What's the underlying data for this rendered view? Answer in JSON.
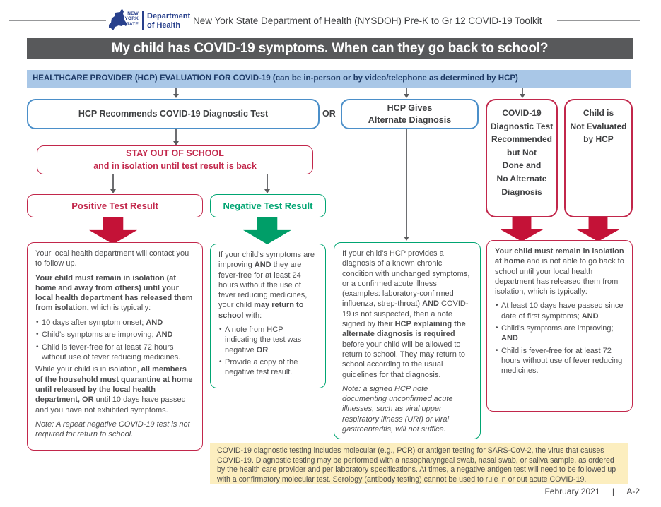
{
  "colors": {
    "red": "#c2274b",
    "red_arrow": "#c41237",
    "green": "#00a572",
    "green_arrow": "#009e68",
    "blue_border": "#4b8fc9",
    "banner_blue": "#a9c7e7",
    "banner_dark": "#58595b",
    "navy": "#1e3a65",
    "logo_blue": "#28408c",
    "note_yellow": "#fceebf"
  },
  "header": {
    "logo_state": "NEW\nYORK\nSTATE",
    "logo_dept": "Department\nof Health",
    "title": "New York State Department of Health (NYSDOH) Pre-K to Gr 12 COVID-19 Toolkit"
  },
  "question_banner": "My child has COVID-19 symptoms. When can they go back to school?",
  "hcp_banner": "HEALTHCARE PROVIDER (HCP) EVALUATION FOR COVID-19 (can be in-person or by video/telephone as determined by HCP)",
  "flow": {
    "test_box": "HCP Recommends COVID-19 Diagnostic Test",
    "or": "OR",
    "alt_box": "HCP Gives\nAlternate Diagnosis",
    "not_done_box": "COVID-19\nDiagnostic Test\nRecommended\nbut Not\nDone and\nNo Alternate\nDiagnosis",
    "not_evaluated_box": "Child is\nNot Evaluated\nby HCP",
    "stay_out_line1": "STAY OUT OF SCHOOL",
    "stay_out_line2": "and in isolation until test result is back",
    "positive": "Positive Test Result",
    "negative": "Negative Test Result"
  },
  "boxes": {
    "positive": {
      "paragraphs": [
        {
          "type": "p",
          "runs": [
            {
              "t": "Your local health department will contact you to follow up."
            }
          ]
        },
        {
          "type": "p",
          "runs": [
            {
              "t": "Your child must remain in isolation (at home and away from others) until your local health department has released them from isolation,",
              "b": true
            },
            {
              "t": " which is typically:"
            }
          ]
        },
        {
          "type": "li",
          "runs": [
            {
              "t": "10 days after symptom onset; "
            },
            {
              "t": "AND",
              "b": true
            }
          ]
        },
        {
          "type": "li",
          "runs": [
            {
              "t": "Child's symptoms are improving; "
            },
            {
              "t": "AND",
              "b": true
            }
          ]
        },
        {
          "type": "li",
          "runs": [
            {
              "t": "Child is fever-free for at least 72 hours without use of fever reducing medicines."
            }
          ]
        },
        {
          "type": "p",
          "runs": [
            {
              "t": "While your child is in isolation, "
            },
            {
              "t": "all members of the household must quarantine at home until released by the local health department, OR",
              "b": true
            },
            {
              "t": " until 10 days have passed and you have not exhibited symptoms."
            }
          ]
        },
        {
          "type": "p",
          "runs": [
            {
              "t": "Note: A repeat negative COVID-19 test is not required for return to school.",
              "i": true
            }
          ]
        }
      ]
    },
    "negative": {
      "paragraphs": [
        {
          "type": "p",
          "runs": [
            {
              "t": "If your child's symptoms are improving "
            },
            {
              "t": "AND",
              "b": true
            },
            {
              "t": " they are fever-free for at least 24 hours without the use of fever reducing medicines, your child "
            },
            {
              "t": "may return to school",
              "b": true
            },
            {
              "t": " with:"
            }
          ]
        },
        {
          "type": "li",
          "runs": [
            {
              "t": "A note from HCP indicating the test was negative "
            },
            {
              "t": "OR",
              "b": true
            }
          ]
        },
        {
          "type": "li",
          "runs": [
            {
              "t": "Provide a copy of the negative test result."
            }
          ]
        }
      ]
    },
    "alternate": {
      "paragraphs": [
        {
          "type": "p",
          "runs": [
            {
              "t": "If your child's HCP provides a diagnosis of a known chronic condition with unchanged symptoms, or a confirmed acute illness (examples: laboratory-confirmed influenza, strep-throat) "
            },
            {
              "t": "AND",
              "b": true
            },
            {
              "t": " COVID-19 is not suspected, then a note signed by their "
            },
            {
              "t": "HCP explaining the alternate diagnosis is required",
              "b": true
            },
            {
              "t": " before your child will be allowed to return to school. They may return to school according to the usual guidelines for that diagnosis."
            }
          ]
        },
        {
          "type": "p",
          "runs": [
            {
              "t": "Note: a signed HCP note documenting unconfirmed acute illnesses, such as viral upper respiratory illness (URI) or viral gastroenteritis, will not suffice.",
              "i": true
            }
          ]
        }
      ]
    },
    "isolation": {
      "paragraphs": [
        {
          "type": "p",
          "runs": [
            {
              "t": "Your child must remain in isolation at home",
              "b": true
            },
            {
              "t": " and is not able to go back to school until your local health department has released them from isolation, which is typically:"
            }
          ]
        },
        {
          "type": "li",
          "runs": [
            {
              "t": "At least 10 days have passed since date of first symptoms; "
            },
            {
              "t": "AND",
              "b": true
            }
          ]
        },
        {
          "type": "li",
          "runs": [
            {
              "t": "Child's symptoms are improving; "
            },
            {
              "t": "AND",
              "b": true
            }
          ]
        },
        {
          "type": "li",
          "runs": [
            {
              "t": "Child is fever-free for at least 72 hours without use of fever reducing medicines."
            }
          ]
        }
      ]
    }
  },
  "footnote": "COVID-19 diagnostic testing includes molecular (e.g., PCR) or antigen testing for SARS-CoV-2, the virus that causes COVID-19. Diagnostic testing may be performed with a nasopharyngeal swab, nasal swab, or saliva sample, as ordered by the health care provider and per laboratory specifications. At times, a negative antigen test will need to be followed up with a confirmatory molecular test.  Serology (antibody testing) cannot be used to rule in or out acute COVID-19.",
  "footer": {
    "date": "February 2021",
    "separator": "|",
    "page": "A-2"
  }
}
